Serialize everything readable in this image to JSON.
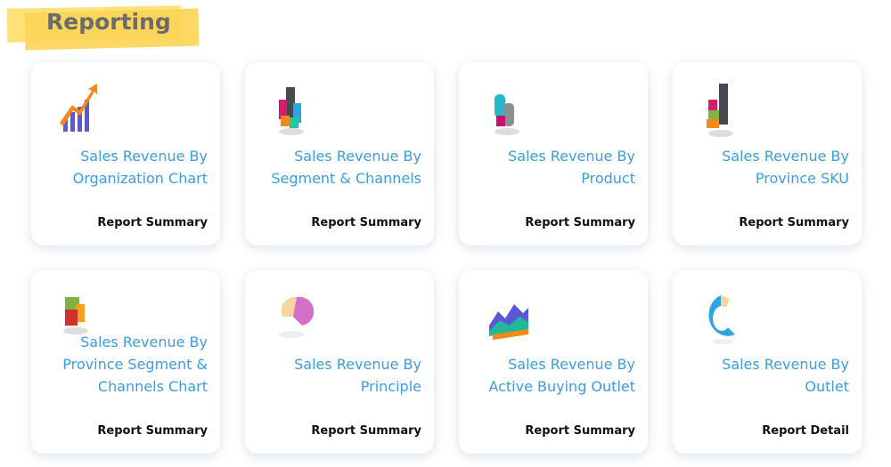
{
  "header": {
    "title": "Reporting"
  },
  "cards": [
    {
      "title_lines": [
        "Sales Revenue By",
        "Organization Chart"
      ],
      "subtitle": "Report Summary",
      "icon": "rising-bar-chart-icon"
    },
    {
      "title_lines": [
        "Sales Revenue By",
        "Segment & Channels"
      ],
      "subtitle": "Report Summary",
      "icon": "3d-bar-chart-icon"
    },
    {
      "title_lines": [
        "Sales Revenue By",
        "Product"
      ],
      "subtitle": "Report Summary",
      "icon": "3d-cylinder-chart-icon"
    },
    {
      "title_lines": [
        "Sales Revenue By",
        "Province SKU"
      ],
      "subtitle": "Report Summary",
      "icon": "3d-stacked-bar-icon"
    },
    {
      "title_lines": [
        "Sales Revenue By",
        "Province Segment &",
        "Channels Chart"
      ],
      "subtitle": "Report Summary",
      "icon": "3d-box-chart-icon"
    },
    {
      "title_lines": [
        "Sales Revenue By",
        "Principle"
      ],
      "subtitle": "Report Summary",
      "icon": "3d-pie-chart-icon"
    },
    {
      "title_lines": [
        "Sales Revenue By",
        "Active Buying Outlet"
      ],
      "subtitle": "Report Summary",
      "icon": "3d-area-chart-icon"
    },
    {
      "title_lines": [
        "Sales Revenue By",
        "Outlet"
      ],
      "subtitle": "Report Detail",
      "icon": "3d-donut-chart-icon"
    }
  ],
  "colors": {
    "title": "#3a9ee0",
    "highlight": "#fcd457"
  }
}
